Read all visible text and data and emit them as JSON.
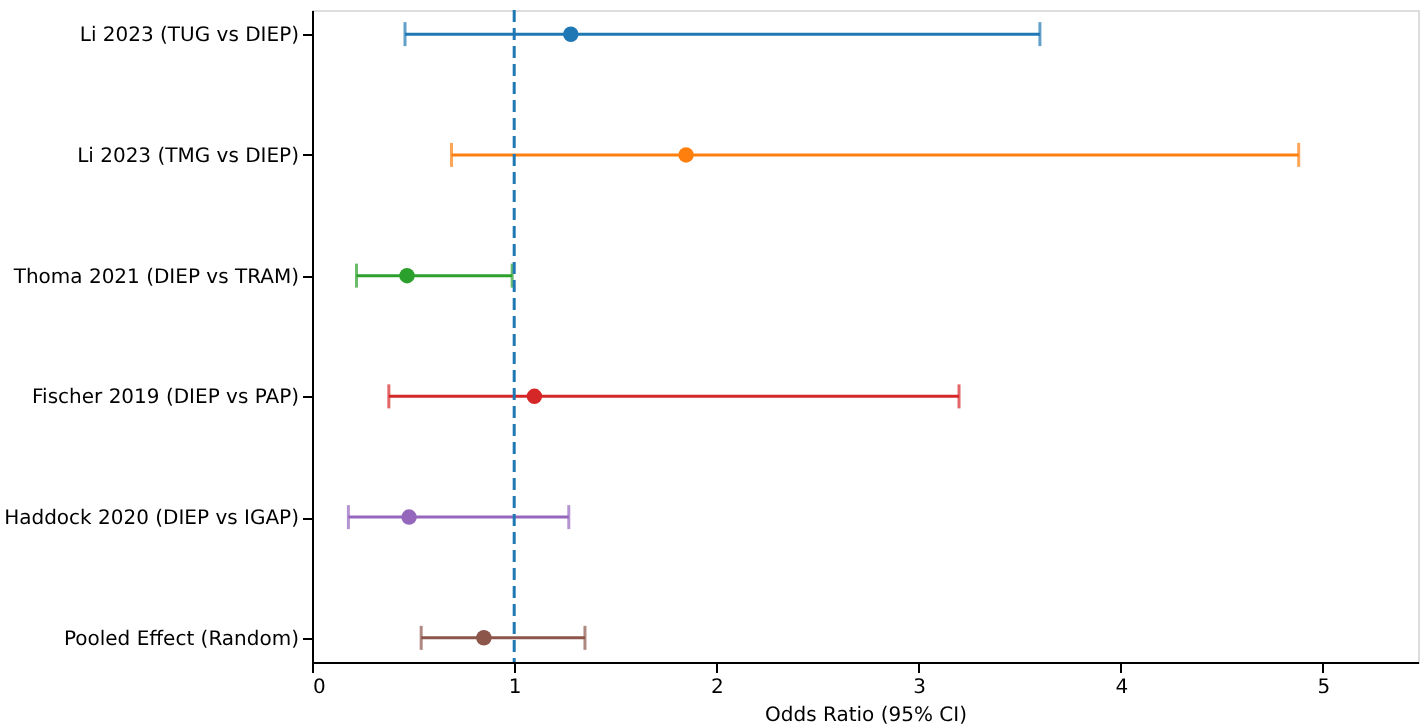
{
  "chart_data": {
    "type": "scatter",
    "orientation": "horizontal",
    "xlabel": "Odds Ratio (95% CI)",
    "categories": [
      "Li 2023 (TUG vs DIEP)",
      "Li 2023 (TMG vs DIEP)",
      "Thoma 2021 (DIEP vs TRAM)",
      "Fischer 2019 (DIEP vs PAP)",
      "Haddock 2020 (DIEP vs IGAP)",
      "Pooled Effect (Random)"
    ],
    "values": [
      1.28,
      1.85,
      0.47,
      1.1,
      0.48,
      0.85
    ],
    "errors": [
      [
        0.46,
        3.6
      ],
      [
        0.69,
        4.88
      ],
      [
        0.22,
        0.99
      ],
      [
        0.38,
        3.2
      ],
      [
        0.18,
        1.27
      ],
      [
        0.54,
        1.35
      ]
    ],
    "colors": [
      "#1f77b4",
      "#ff7f0e",
      "#2ca02c",
      "#d62728",
      "#9467bd",
      "#8c564b"
    ],
    "xlim": [
      0,
      5.47
    ],
    "xticks": [
      0,
      1,
      2,
      3,
      4,
      5
    ],
    "ref_lines": [
      {
        "axis": "x",
        "value": 1,
        "label": null,
        "color": "#1f77b4",
        "line_style": "dashed"
      }
    ],
    "grid": false,
    "marker": "circle"
  }
}
